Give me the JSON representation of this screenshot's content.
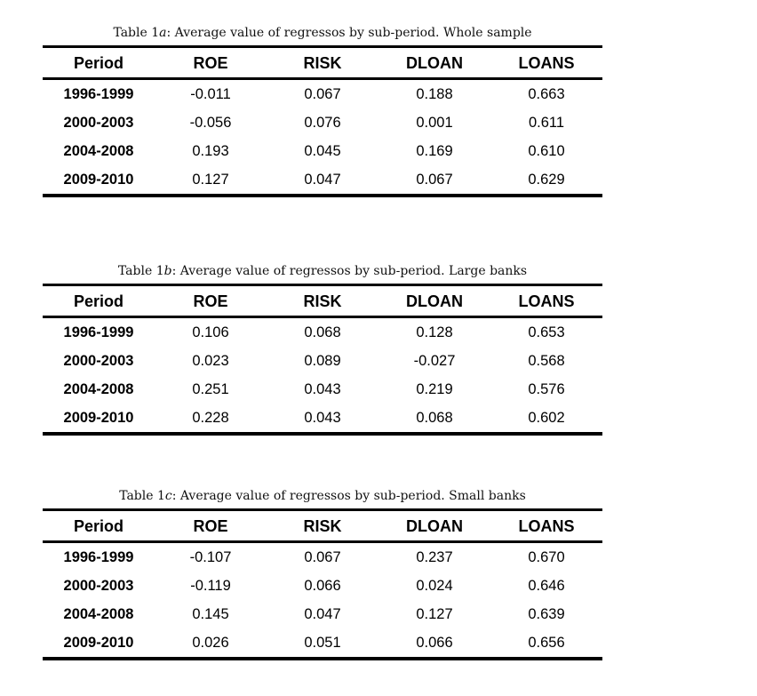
{
  "page": {
    "background_color": "#ffffff",
    "text_color": "#000000",
    "rule_color": "#000000"
  },
  "tables": [
    {
      "caption_prefix": "Table 1",
      "caption_letter": "a",
      "caption_rest": ":  Average value of regressos by sub-period.  Whole sample",
      "columns": [
        "Period",
        "ROE",
        "RISK",
        "DLOAN",
        "LOANS"
      ],
      "rows": [
        [
          "1996-1999",
          "-0.011",
          "0.067",
          "0.188",
          "0.663"
        ],
        [
          "2000-2003",
          "-0.056",
          "0.076",
          "0.001",
          "0.611"
        ],
        [
          "2004-2008",
          "0.193",
          "0.045",
          "0.169",
          "0.610"
        ],
        [
          "2009-2010",
          "0.127",
          "0.047",
          "0.067",
          "0.629"
        ]
      ]
    },
    {
      "caption_prefix": "Table 1",
      "caption_letter": "b",
      "caption_rest": ":  Average value of regressos by sub-period.  Large banks",
      "columns": [
        "Period",
        "ROE",
        "RISK",
        "DLOAN",
        "LOANS"
      ],
      "rows": [
        [
          "1996-1999",
          "0.106",
          "0.068",
          "0.128",
          "0.653"
        ],
        [
          "2000-2003",
          "0.023",
          "0.089",
          "-0.027",
          "0.568"
        ],
        [
          "2004-2008",
          "0.251",
          "0.043",
          "0.219",
          "0.576"
        ],
        [
          "2009-2010",
          "0.228",
          "0.043",
          "0.068",
          "0.602"
        ]
      ]
    },
    {
      "caption_prefix": "Table 1",
      "caption_letter": "c",
      "caption_rest": ":  Average value of regressos by sub-period.  Small banks",
      "columns": [
        "Period",
        "ROE",
        "RISK",
        "DLOAN",
        "LOANS"
      ],
      "rows": [
        [
          "1996-1999",
          "-0.107",
          "0.067",
          "0.237",
          "0.670"
        ],
        [
          "2000-2003",
          "-0.119",
          "0.066",
          "0.024",
          "0.646"
        ],
        [
          "2004-2008",
          "0.145",
          "0.047",
          "0.127",
          "0.639"
        ],
        [
          "2009-2010",
          "0.026",
          "0.051",
          "0.066",
          "0.656"
        ]
      ]
    }
  ]
}
